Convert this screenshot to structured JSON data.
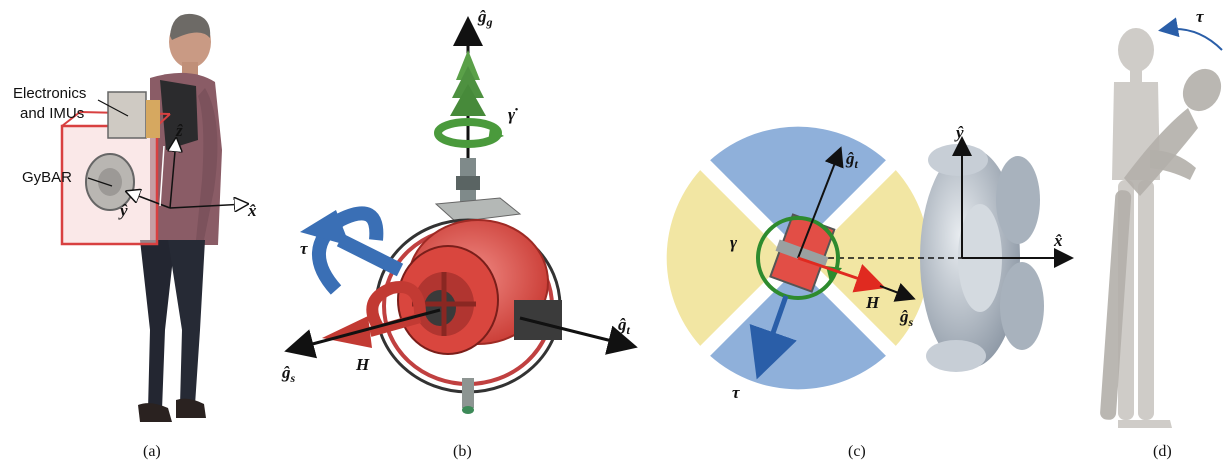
{
  "panels": {
    "a": {
      "caption": "(a)",
      "label_electronics_1": "Electronics",
      "label_electronics_2": "and IMUs",
      "label_gybar": "GyBAR",
      "axis_z": "ẑ",
      "axis_y": "ŷ",
      "axis_x": "x̂"
    },
    "b": {
      "caption": "(b)",
      "axis_gg": "ĝ",
      "axis_gg_sub": "g",
      "gamma_dot": "γ̇",
      "tau": "τ",
      "H": "H",
      "axis_gt": "ĝ",
      "axis_gt_sub": "t",
      "axis_gs": "ĝ",
      "axis_gs_sub": "s"
    },
    "c": {
      "caption": "(c)",
      "axis_gt": "ĝ",
      "axis_gt_sub": "t",
      "gamma": "γ",
      "H": "H",
      "axis_gs": "ĝ",
      "axis_gs_sub": "s",
      "tau": "τ",
      "axis_y": "ŷ",
      "axis_x": "x̂"
    },
    "d": {
      "caption": "(d)",
      "tau": "τ"
    }
  },
  "colors": {
    "gyro_red": "#e8534b",
    "arrow_green": "#4a9a3c",
    "torque_blue": "#3a6fb5",
    "sector_blue": "#8fb0da",
    "sector_yellow": "#f2e6a3",
    "mannequin": "#c9c6c2",
    "robot_head": "#b9c3ce"
  }
}
